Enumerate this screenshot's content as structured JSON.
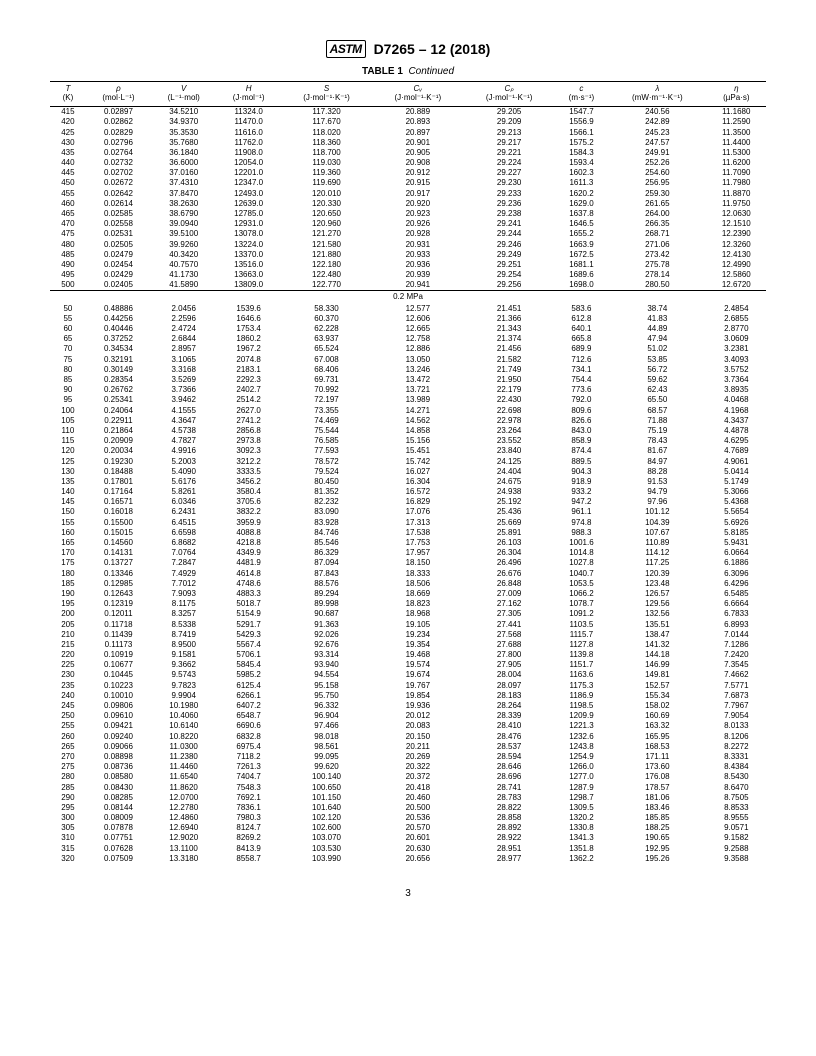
{
  "header": {
    "logo": "ASTM",
    "standard": "D7265 – 12 (2018)"
  },
  "caption": {
    "label": "TABLE 1",
    "suffix": "Continued"
  },
  "page_number": "3",
  "columns": {
    "syms": [
      "T",
      "ρ",
      "V",
      "H",
      "S",
      "Cᵥ",
      "Cₚ",
      "c",
      "λ",
      "η"
    ],
    "units": [
      "(K)",
      "(mol·L⁻¹)",
      "(L⁻¹·mol)",
      "(J·mol⁻¹)",
      "(J·mol⁻¹·K⁻¹)",
      "(J·mol⁻¹·K⁻¹)",
      "(J·mol⁻¹·K⁻¹)",
      "(m·s⁻¹)",
      "(mW·m⁻¹·K⁻¹)",
      "(µPa·s)"
    ]
  },
  "section_break_label": "0.2 MPa",
  "rows1": [
    [
      "415",
      "0.02897",
      "34.5210",
      "11324.0",
      "117.320",
      "20.889",
      "29.205",
      "1547.7",
      "240.56",
      "11.1680"
    ],
    [
      "420",
      "0.02862",
      "34.9370",
      "11470.0",
      "117.670",
      "20.893",
      "29.209",
      "1556.9",
      "242.89",
      "11.2590"
    ],
    [
      "425",
      "0.02829",
      "35.3530",
      "11616.0",
      "118.020",
      "20.897",
      "29.213",
      "1566.1",
      "245.23",
      "11.3500"
    ],
    [
      "430",
      "0.02796",
      "35.7680",
      "11762.0",
      "118.360",
      "20.901",
      "29.217",
      "1575.2",
      "247.57",
      "11.4400"
    ],
    [
      "435",
      "0.02764",
      "36.1840",
      "11908.0",
      "118.700",
      "20.905",
      "29.221",
      "1584.3",
      "249.91",
      "11.5300"
    ],
    [
      "440",
      "0.02732",
      "36.6000",
      "12054.0",
      "119.030",
      "20.908",
      "29.224",
      "1593.4",
      "252.26",
      "11.6200"
    ],
    [
      "445",
      "0.02702",
      "37.0160",
      "12201.0",
      "119.360",
      "20.912",
      "29.227",
      "1602.3",
      "254.60",
      "11.7090"
    ],
    [
      "450",
      "0.02672",
      "37.4310",
      "12347.0",
      "119.690",
      "20.915",
      "29.230",
      "1611.3",
      "256.95",
      "11.7980"
    ],
    [
      "455",
      "0.02642",
      "37.8470",
      "12493.0",
      "120.010",
      "20.917",
      "29.233",
      "1620.2",
      "259.30",
      "11.8870"
    ],
    [
      "460",
      "0.02614",
      "38.2630",
      "12639.0",
      "120.330",
      "20.920",
      "29.236",
      "1629.0",
      "261.65",
      "11.9750"
    ],
    [
      "465",
      "0.02585",
      "38.6790",
      "12785.0",
      "120.650",
      "20.923",
      "29.238",
      "1637.8",
      "264.00",
      "12.0630"
    ],
    [
      "470",
      "0.02558",
      "39.0940",
      "12931.0",
      "120.960",
      "20.926",
      "29.241",
      "1646.5",
      "266.35",
      "12.1510"
    ],
    [
      "475",
      "0.02531",
      "39.5100",
      "13078.0",
      "121.270",
      "20.928",
      "29.244",
      "1655.2",
      "268.71",
      "12.2390"
    ],
    [
      "480",
      "0.02505",
      "39.9260",
      "13224.0",
      "121.580",
      "20.931",
      "29.246",
      "1663.9",
      "271.06",
      "12.3260"
    ],
    [
      "485",
      "0.02479",
      "40.3420",
      "13370.0",
      "121.880",
      "20.933",
      "29.249",
      "1672.5",
      "273.42",
      "12.4130"
    ],
    [
      "490",
      "0.02454",
      "40.7570",
      "13516.0",
      "122.180",
      "20.936",
      "29.251",
      "1681.1",
      "275.78",
      "12.4990"
    ],
    [
      "495",
      "0.02429",
      "41.1730",
      "13663.0",
      "122.480",
      "20.939",
      "29.254",
      "1689.6",
      "278.14",
      "12.5860"
    ],
    [
      "500",
      "0.02405",
      "41.5890",
      "13809.0",
      "122.770",
      "20.941",
      "29.256",
      "1698.0",
      "280.50",
      "12.6720"
    ]
  ],
  "rows2": [
    [
      "50",
      "0.48886",
      "2.0456",
      "1539.6",
      "58.330",
      "12.577",
      "21.451",
      "583.6",
      "38.74",
      "2.4854"
    ],
    [
      "55",
      "0.44256",
      "2.2596",
      "1646.6",
      "60.370",
      "12.606",
      "21.366",
      "612.8",
      "41.83",
      "2.6855"
    ],
    [
      "60",
      "0.40446",
      "2.4724",
      "1753.4",
      "62.228",
      "12.665",
      "21.343",
      "640.1",
      "44.89",
      "2.8770"
    ],
    [
      "65",
      "0.37252",
      "2.6844",
      "1860.2",
      "63.937",
      "12.758",
      "21.374",
      "665.8",
      "47.94",
      "3.0609"
    ],
    [
      "70",
      "0.34534",
      "2.8957",
      "1967.2",
      "65.524",
      "12.886",
      "21.456",
      "689.9",
      "51.02",
      "3.2381"
    ],
    [
      "75",
      "0.32191",
      "3.1065",
      "2074.8",
      "67.008",
      "13.050",
      "21.582",
      "712.6",
      "53.85",
      "3.4093"
    ],
    [
      "80",
      "0.30149",
      "3.3168",
      "2183.1",
      "68.406",
      "13.246",
      "21.749",
      "734.1",
      "56.72",
      "3.5752"
    ],
    [
      "85",
      "0.28354",
      "3.5269",
      "2292.3",
      "69.731",
      "13.472",
      "21.950",
      "754.4",
      "59.62",
      "3.7364"
    ],
    [
      "90",
      "0.26762",
      "3.7366",
      "2402.7",
      "70.992",
      "13.721",
      "22.179",
      "773.6",
      "62.43",
      "3.8935"
    ],
    [
      "95",
      "0.25341",
      "3.9462",
      "2514.2",
      "72.197",
      "13.989",
      "22.430",
      "792.0",
      "65.50",
      "4.0468"
    ],
    [
      "100",
      "0.24064",
      "4.1555",
      "2627.0",
      "73.355",
      "14.271",
      "22.698",
      "809.6",
      "68.57",
      "4.1968"
    ],
    [
      "105",
      "0.22911",
      "4.3647",
      "2741.2",
      "74.469",
      "14.562",
      "22.978",
      "826.6",
      "71.88",
      "4.3437"
    ],
    [
      "110",
      "0.21864",
      "4.5738",
      "2856.8",
      "75.544",
      "14.858",
      "23.264",
      "843.0",
      "75.19",
      "4.4878"
    ],
    [
      "115",
      "0.20909",
      "4.7827",
      "2973.8",
      "76.585",
      "15.156",
      "23.552",
      "858.9",
      "78.43",
      "4.6295"
    ],
    [
      "120",
      "0.20034",
      "4.9916",
      "3092.3",
      "77.593",
      "15.451",
      "23.840",
      "874.4",
      "81.67",
      "4.7689"
    ],
    [
      "125",
      "0.19230",
      "5.2003",
      "3212.2",
      "78.572",
      "15.742",
      "24.125",
      "889.5",
      "84.97",
      "4.9061"
    ],
    [
      "130",
      "0.18488",
      "5.4090",
      "3333.5",
      "79.524",
      "16.027",
      "24.404",
      "904.3",
      "88.28",
      "5.0414"
    ],
    [
      "135",
      "0.17801",
      "5.6176",
      "3456.2",
      "80.450",
      "16.304",
      "24.675",
      "918.9",
      "91.53",
      "5.1749"
    ],
    [
      "140",
      "0.17164",
      "5.8261",
      "3580.4",
      "81.352",
      "16.572",
      "24.938",
      "933.2",
      "94.79",
      "5.3066"
    ],
    [
      "145",
      "0.16571",
      "6.0346",
      "3705.6",
      "82.232",
      "16.829",
      "25.192",
      "947.2",
      "97.96",
      "5.4368"
    ],
    [
      "150",
      "0.16018",
      "6.2431",
      "3832.2",
      "83.090",
      "17.076",
      "25.436",
      "961.1",
      "101.12",
      "5.5654"
    ],
    [
      "155",
      "0.15500",
      "6.4515",
      "3959.9",
      "83.928",
      "17.313",
      "25.669",
      "974.8",
      "104.39",
      "5.6926"
    ],
    [
      "160",
      "0.15015",
      "6.6598",
      "4088.8",
      "84.746",
      "17.538",
      "25.891",
      "988.3",
      "107.67",
      "5.8185"
    ],
    [
      "165",
      "0.14560",
      "6.8682",
      "4218.8",
      "85.546",
      "17.753",
      "26.103",
      "1001.6",
      "110.89",
      "5.9431"
    ],
    [
      "170",
      "0.14131",
      "7.0764",
      "4349.9",
      "86.329",
      "17.957",
      "26.304",
      "1014.8",
      "114.12",
      "6.0664"
    ],
    [
      "175",
      "0.13727",
      "7.2847",
      "4481.9",
      "87.094",
      "18.150",
      "26.496",
      "1027.8",
      "117.25",
      "6.1886"
    ],
    [
      "180",
      "0.13346",
      "7.4929",
      "4614.8",
      "87.843",
      "18.333",
      "26.676",
      "1040.7",
      "120.39",
      "6.3096"
    ],
    [
      "185",
      "0.12985",
      "7.7012",
      "4748.6",
      "88.576",
      "18.506",
      "26.848",
      "1053.5",
      "123.48",
      "6.4296"
    ],
    [
      "190",
      "0.12643",
      "7.9093",
      "4883.3",
      "89.294",
      "18.669",
      "27.009",
      "1066.2",
      "126.57",
      "6.5485"
    ],
    [
      "195",
      "0.12319",
      "8.1175",
      "5018.7",
      "89.998",
      "18.823",
      "27.162",
      "1078.7",
      "129.56",
      "6.6664"
    ],
    [
      "200",
      "0.12011",
      "8.3257",
      "5154.9",
      "90.687",
      "18.968",
      "27.305",
      "1091.2",
      "132.56",
      "6.7833"
    ],
    [
      "205",
      "0.11718",
      "8.5338",
      "5291.7",
      "91.363",
      "19.105",
      "27.441",
      "1103.5",
      "135.51",
      "6.8993"
    ],
    [
      "210",
      "0.11439",
      "8.7419",
      "5429.3",
      "92.026",
      "19.234",
      "27.568",
      "1115.7",
      "138.47",
      "7.0144"
    ],
    [
      "215",
      "0.11173",
      "8.9500",
      "5567.4",
      "92.676",
      "19.354",
      "27.688",
      "1127.8",
      "141.32",
      "7.1286"
    ],
    [
      "220",
      "0.10919",
      "9.1581",
      "5706.1",
      "93.314",
      "19.468",
      "27.800",
      "1139.8",
      "144.18",
      "7.2420"
    ],
    [
      "225",
      "0.10677",
      "9.3662",
      "5845.4",
      "93.940",
      "19.574",
      "27.905",
      "1151.7",
      "146.99",
      "7.3545"
    ],
    [
      "230",
      "0.10445",
      "9.5743",
      "5985.2",
      "94.554",
      "19.674",
      "28.004",
      "1163.6",
      "149.81",
      "7.4662"
    ],
    [
      "235",
      "0.10223",
      "9.7823",
      "6125.4",
      "95.158",
      "19.767",
      "28.097",
      "1175.3",
      "152.57",
      "7.5771"
    ],
    [
      "240",
      "0.10010",
      "9.9904",
      "6266.1",
      "95.750",
      "19.854",
      "28.183",
      "1186.9",
      "155.34",
      "7.6873"
    ],
    [
      "245",
      "0.09806",
      "10.1980",
      "6407.2",
      "96.332",
      "19.936",
      "28.264",
      "1198.5",
      "158.02",
      "7.7967"
    ],
    [
      "250",
      "0.09610",
      "10.4060",
      "6548.7",
      "96.904",
      "20.012",
      "28.339",
      "1209.9",
      "160.69",
      "7.9054"
    ],
    [
      "255",
      "0.09421",
      "10.6140",
      "6690.6",
      "97.466",
      "20.083",
      "28.410",
      "1221.3",
      "163.32",
      "8.0133"
    ],
    [
      "260",
      "0.09240",
      "10.8220",
      "6832.8",
      "98.018",
      "20.150",
      "28.476",
      "1232.6",
      "165.95",
      "8.1206"
    ],
    [
      "265",
      "0.09066",
      "11.0300",
      "6975.4",
      "98.561",
      "20.211",
      "28.537",
      "1243.8",
      "168.53",
      "8.2272"
    ],
    [
      "270",
      "0.08898",
      "11.2380",
      "7118.2",
      "99.095",
      "20.269",
      "28.594",
      "1254.9",
      "171.11",
      "8.3331"
    ],
    [
      "275",
      "0.08736",
      "11.4460",
      "7261.3",
      "99.620",
      "20.322",
      "28.646",
      "1266.0",
      "173.60",
      "8.4384"
    ],
    [
      "280",
      "0.08580",
      "11.6540",
      "7404.7",
      "100.140",
      "20.372",
      "28.696",
      "1277.0",
      "176.08",
      "8.5430"
    ],
    [
      "285",
      "0.08430",
      "11.8620",
      "7548.3",
      "100.650",
      "20.418",
      "28.741",
      "1287.9",
      "178.57",
      "8.6470"
    ],
    [
      "290",
      "0.08285",
      "12.0700",
      "7692.1",
      "101.150",
      "20.460",
      "28.783",
      "1298.7",
      "181.06",
      "8.7505"
    ],
    [
      "295",
      "0.08144",
      "12.2780",
      "7836.1",
      "101.640",
      "20.500",
      "28.822",
      "1309.5",
      "183.46",
      "8.8533"
    ],
    [
      "300",
      "0.08009",
      "12.4860",
      "7980.3",
      "102.120",
      "20.536",
      "28.858",
      "1320.2",
      "185.85",
      "8.9555"
    ],
    [
      "305",
      "0.07878",
      "12.6940",
      "8124.7",
      "102.600",
      "20.570",
      "28.892",
      "1330.8",
      "188.25",
      "9.0571"
    ],
    [
      "310",
      "0.07751",
      "12.9020",
      "8269.2",
      "103.070",
      "20.601",
      "28.922",
      "1341.3",
      "190.65",
      "9.1582"
    ],
    [
      "315",
      "0.07628",
      "13.1100",
      "8413.9",
      "103.530",
      "20.630",
      "28.951",
      "1351.8",
      "192.95",
      "9.2588"
    ],
    [
      "320",
      "0.07509",
      "13.3180",
      "8558.7",
      "103.990",
      "20.656",
      "28.977",
      "1362.2",
      "195.26",
      "9.3588"
    ]
  ]
}
